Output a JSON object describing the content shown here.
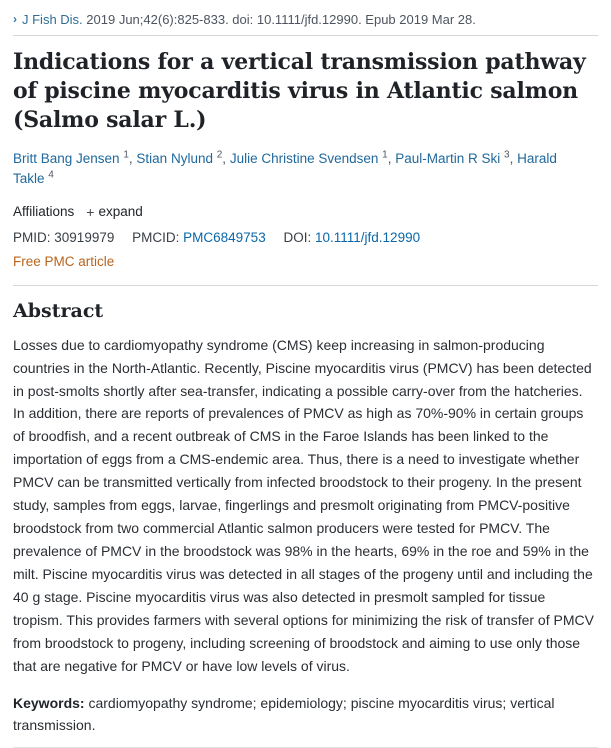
{
  "citation": {
    "chevron": "›",
    "journal": "J Fish Dis.",
    "rest": "2019 Jun;42(6):825-833. doi: 10.1111/jfd.12990. Epub 2019 Mar 28."
  },
  "title": "Indications for a vertical transmission pathway of piscine myocarditis virus in Atlantic salmon (Salmo salar L.)",
  "authors": [
    {
      "name": "Britt Bang Jensen",
      "sup": "1"
    },
    {
      "name": "Stian Nylund",
      "sup": "2"
    },
    {
      "name": "Julie Christine Svendsen",
      "sup": "1"
    },
    {
      "name": "Paul-Martin R Ski",
      "sup": "3"
    },
    {
      "name": "Harald Takle",
      "sup": "4"
    }
  ],
  "affiliations": {
    "label": "Affiliations",
    "expand_icon": "+",
    "expand_label": "expand"
  },
  "identifiers": {
    "pmid_label": "PMID:",
    "pmid_value": "30919979",
    "pmcid_label": "PMCID:",
    "pmcid_value": "PMC6849753",
    "doi_label": "DOI:",
    "doi_value": "10.1111/jfd.12990"
  },
  "free_pmc_label": "Free PMC article",
  "abstract": {
    "heading": "Abstract",
    "text": "Losses due to cardiomyopathy syndrome (CMS) keep increasing in salmon-producing countries in the North-Atlantic. Recently, Piscine myocarditis virus (PMCV) has been detected in post-smolts shortly after sea-transfer, indicating a possible carry-over from the hatcheries. In addition, there are reports of prevalences of PMCV as high as 70%-90% in certain groups of broodfish, and a recent outbreak of CMS in the Faroe Islands has been linked to the importation of eggs from a CMS-endemic area. Thus, there is a need to investigate whether PMCV can be transmitted vertically from infected broodstock to their progeny. In the present study, samples from eggs, larvae, fingerlings and presmolt originating from PMCV-positive broodstock from two commercial Atlantic salmon producers were tested for PMCV. The prevalence of PMCV in the broodstock was 98% in the hearts, 69% in the roe and 59% in the milt. Piscine myocarditis virus was detected in all stages of the progeny until and including the 40 g stage. Piscine myocarditis virus was also detected in presmolt sampled for tissue tropism. This provides farmers with several options for minimizing the risk of transfer of PMCV from broodstock to progeny, including screening of broodstock and aiming to use only those that are negative for PMCV or have low levels of virus."
  },
  "keywords": {
    "label": "Keywords:",
    "text": "cardiomyopathy syndrome; epidemiology; piscine myocarditis virus; vertical transmission."
  },
  "colors": {
    "journal_link": "#2d6d93",
    "chevron": "#2d79b5",
    "author_link": "#20699c",
    "id_link": "#0b67a8",
    "free_pmc": "#b9641f",
    "rule": "#d7d7d7"
  }
}
